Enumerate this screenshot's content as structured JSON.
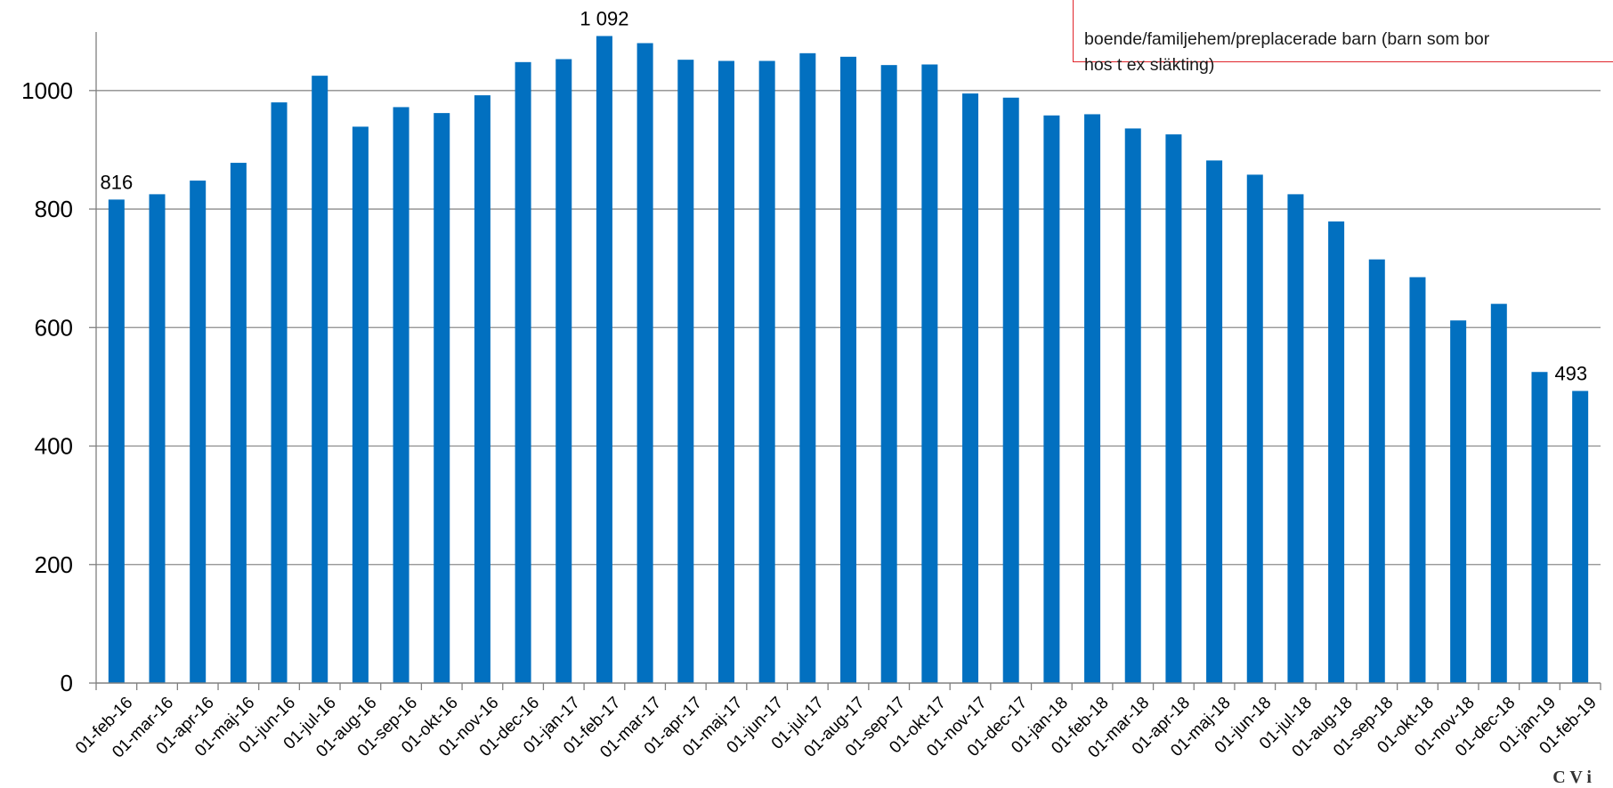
{
  "annotation": {
    "text": "boende/familjehem/preplacerade barn (barn som bor\nhos t ex släkting)"
  },
  "corner_text": "C V i",
  "colors": {
    "bar": "#0270c0",
    "grid": "#8c8c8c",
    "axis": "#808080"
  },
  "chart_data": {
    "type": "bar",
    "categories": [
      "01-feb-16",
      "01-mar-16",
      "01-apr-16",
      "01-maj-16",
      "01-jun-16",
      "01-jul-16",
      "01-aug-16",
      "01-sep-16",
      "01-okt-16",
      "01-nov-16",
      "01-dec-16",
      "01-jan-17",
      "01-feb-17",
      "01-mar-17",
      "01-apr-17",
      "01-maj-17",
      "01-jun-17",
      "01-jul-17",
      "01-aug-17",
      "01-sep-17",
      "01-okt-17",
      "01-nov-17",
      "01-dec-17",
      "01-jan-18",
      "01-feb-18",
      "01-mar-18",
      "01-apr-18",
      "01-maj-18",
      "01-jun-18",
      "01-jul-18",
      "01-aug-18",
      "01-sep-18",
      "01-okt-18",
      "01-nov-18",
      "01-dec-18",
      "01-jan-19",
      "01-feb-19"
    ],
    "values": [
      816,
      825,
      848,
      878,
      980,
      1025,
      939,
      972,
      962,
      992,
      1048,
      1053,
      1092,
      1080,
      1052,
      1050,
      1050,
      1063,
      1057,
      1043,
      1044,
      995,
      988,
      958,
      960,
      936,
      926,
      882,
      858,
      825,
      779,
      715,
      685,
      612,
      640,
      525,
      493
    ],
    "data_labels": [
      {
        "index": 0,
        "text": "816"
      },
      {
        "index": 12,
        "text": "1 092"
      },
      {
        "index": 36,
        "text": "493"
      }
    ],
    "y_ticks": [
      0,
      200,
      400,
      600,
      800,
      1000
    ],
    "ylim": [
      0,
      1100
    ],
    "grid": true,
    "legend": "none"
  }
}
